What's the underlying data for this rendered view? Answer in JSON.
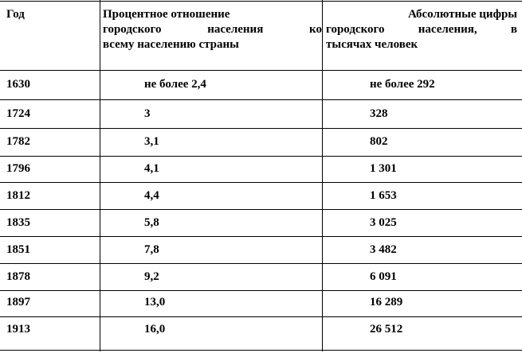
{
  "table": {
    "headers": {
      "year": "Год",
      "percent_line1": "Процентное отношение",
      "percent_line2_a": "городского",
      "percent_line2_b": "населения",
      "percent_line2_c": "ко",
      "percent_line3": "всему населению страны",
      "absolute_line1": "Абсолютные цифры",
      "absolute_line2_a": "городского",
      "absolute_line2_b": "населения,",
      "absolute_line2_c": "в",
      "absolute_line3": "тысячах человек"
    },
    "rows": [
      {
        "year": "1630",
        "percent": "не более 2,4",
        "absolute": "не более 292"
      },
      {
        "year": "1724",
        "percent": "3",
        "absolute": "328"
      },
      {
        "year": "1782",
        "percent": "3,1",
        "absolute": "802"
      },
      {
        "year": "1796",
        "percent": "4,1",
        "absolute": "1 301"
      },
      {
        "year": "1812",
        "percent": "4,4",
        "absolute": "1 653"
      },
      {
        "year": "1835",
        "percent": "5,8",
        "absolute": "3 025"
      },
      {
        "year": "1851",
        "percent": "7,8",
        "absolute": "3 482"
      },
      {
        "year": "1878",
        "percent": "9,2",
        "absolute": "6 091"
      },
      {
        "year": "1897",
        "percent": "13,0",
        "absolute": "16 289"
      },
      {
        "year": "1913",
        "percent": "16,0",
        "absolute": "26 512"
      }
    ]
  }
}
